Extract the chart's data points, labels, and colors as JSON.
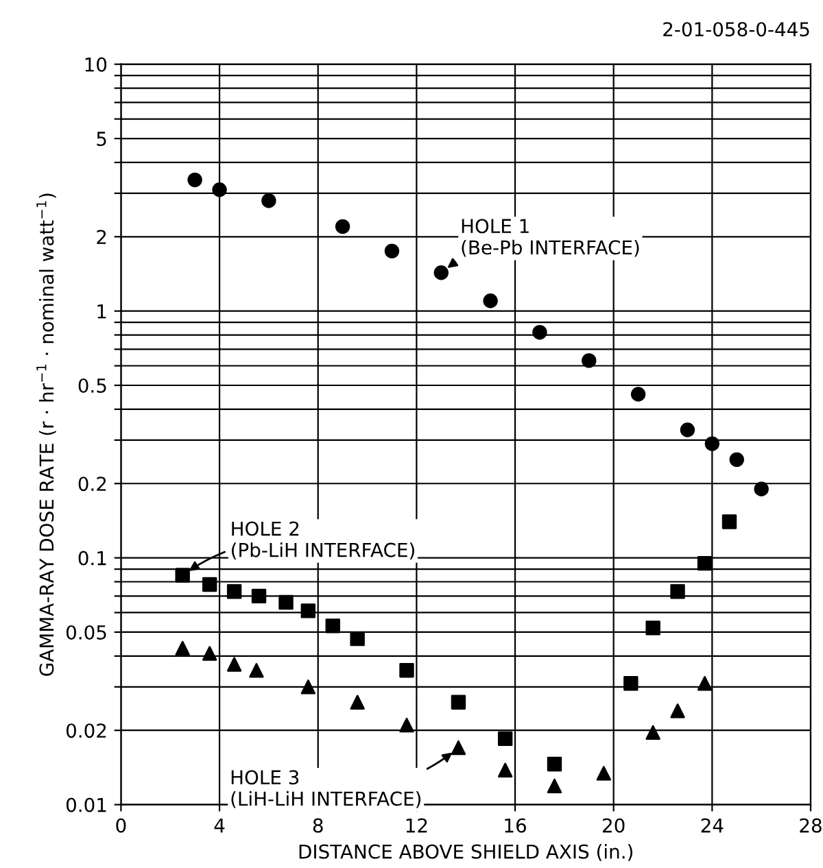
{
  "chart_data": {
    "type": "scatter",
    "xlabel": "DISTANCE ABOVE SHIELD AXIS (in.)",
    "ylabel": "GAMMA-RAY DOSE RATE (r · hr$^{−1}$ · nominal watt$^{−1}$)",
    "log": "y",
    "xlim": [
      0,
      28
    ],
    "ylim": [
      0.01,
      10
    ],
    "grid": true,
    "xticks": [
      0,
      4,
      8,
      12,
      16,
      20,
      24,
      28
    ],
    "yticks": [
      0.01,
      0.02,
      {
        "value": 0.03,
        "label": null
      },
      {
        "value": 0.04,
        "label": null
      },
      0.05,
      {
        "value": 0.06,
        "label": null
      },
      {
        "value": 0.07,
        "label": null
      },
      {
        "value": 0.08,
        "label": null
      },
      {
        "value": 0.09,
        "label": null
      },
      0.1,
      0.2,
      {
        "value": 0.3,
        "label": null
      },
      {
        "value": 0.4,
        "label": null
      },
      0.5,
      {
        "value": 0.6,
        "label": null
      },
      {
        "value": 0.7,
        "label": null
      },
      {
        "value": 0.8,
        "label": null
      },
      {
        "value": 0.9,
        "label": null
      },
      1,
      2,
      {
        "value": 3,
        "label": null
      },
      {
        "value": 4,
        "label": null
      },
      5,
      {
        "value": 6,
        "label": null
      },
      {
        "value": 7,
        "label": null
      },
      {
        "value": 8,
        "label": null
      },
      {
        "value": 9,
        "label": null
      },
      10
    ],
    "series": [
      {
        "color": "#000000",
        "marker": "circle",
        "x": [
          3.0,
          4.0,
          6.0,
          9.0,
          11.0,
          13.0,
          15.0,
          17.0,
          19.0,
          21.0,
          23.0,
          24.0,
          25.0,
          26.0
        ],
        "values": [
          3.4,
          3.1,
          2.8,
          2.2,
          1.75,
          1.43,
          1.1,
          0.82,
          0.63,
          0.46,
          0.33,
          0.29,
          0.25,
          0.19
        ]
      },
      {
        "color": "#000000",
        "marker": "square",
        "x": [
          2.5,
          3.6,
          4.6,
          5.6,
          6.7,
          7.6,
          8.6,
          9.6,
          11.6,
          13.7,
          15.6,
          17.6,
          20.7,
          21.6,
          22.6,
          23.7,
          24.7
        ],
        "values": [
          0.085,
          0.078,
          0.073,
          0.07,
          0.066,
          0.061,
          0.053,
          0.047,
          0.035,
          0.026,
          0.0185,
          0.0146,
          0.031,
          0.052,
          0.073,
          0.095,
          0.14
        ]
      },
      {
        "color": "#000000",
        "marker": "triangle",
        "x": [
          2.5,
          3.6,
          4.6,
          5.5,
          7.6,
          9.6,
          11.6,
          13.7,
          15.6,
          17.6,
          19.6,
          21.6,
          22.6,
          23.7
        ],
        "values": [
          0.043,
          0.041,
          0.037,
          0.035,
          0.03,
          0.026,
          0.021,
          0.017,
          0.0138,
          0.0119,
          0.0134,
          0.0196,
          0.024,
          0.031
        ]
      }
    ],
    "annotations": [
      {
        "text": "HOLE 1\n(Be-Pb INTERFACE)",
        "x": 13.0,
        "y": 1.43
      },
      {
        "text": "HOLE 2\n(Pb-LiH INTERFACE)",
        "x": 2.5,
        "y": 0.085
      },
      {
        "text": "HOLE 3\n(LiH-LiH INTERFACE)",
        "x": 13.7,
        "y": 0.017
      },
      "2-01-058-0-445"
    ]
  }
}
